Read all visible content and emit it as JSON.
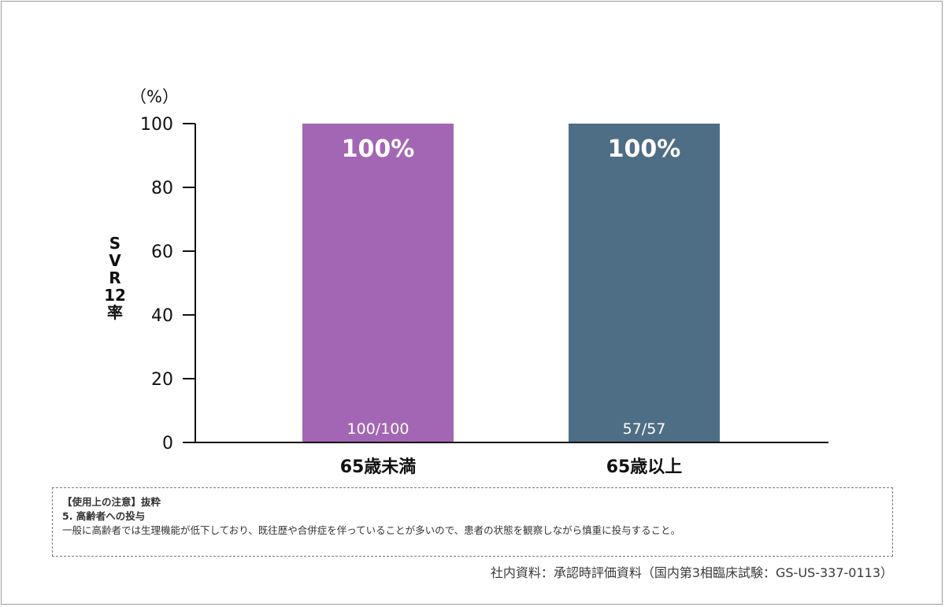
{
  "chart_data": {
    "type": "bar",
    "categories": [
      "65歳未満",
      "65歳以上"
    ],
    "values": [
      100,
      100
    ],
    "value_labels": [
      "100%",
      "100%"
    ],
    "count_labels": [
      "100/100",
      "57/57"
    ],
    "colors": [
      "#a366b4",
      "#4e6e85"
    ],
    "ylabel": "SVR12率",
    "ylabel_chars": [
      "S",
      "V",
      "R",
      "12",
      "率"
    ],
    "unit_label": "（%）",
    "ylim": [
      0,
      100
    ],
    "yticks": [
      "0",
      "20",
      "40",
      "60",
      "80",
      "100"
    ],
    "grid": false
  },
  "note": {
    "heading": "【使用上の注意】抜粋",
    "section": "5. 高齢者への投与",
    "body": "一般に高齢者では生理機能が低下しており、既往歴や合併症を伴っていることが多いので、患者の状態を観察しながら慎重に投与すること。"
  },
  "source": "社内資料：承認時評価資料（国内第3相臨床試験：GS-US-337-0113）"
}
